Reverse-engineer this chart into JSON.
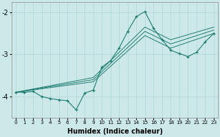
{
  "xlabel": "Humidex (Indice chaleur)",
  "xlim": [
    -0.5,
    23.5
  ],
  "ylim": [
    -4.5,
    -1.75
  ],
  "yticks": [
    -4,
    -3,
    -2
  ],
  "bg_color": "#cce8e8",
  "line_color": "#1a7a6e",
  "grid_color": "#b0d8d8",
  "main_line": {
    "x": [
      0,
      1,
      2,
      3,
      4,
      5,
      6,
      7,
      8,
      9,
      10,
      11,
      12,
      13,
      14,
      15,
      16,
      17,
      18,
      19,
      20,
      21,
      22,
      23
    ],
    "y": [
      -3.9,
      -3.9,
      -3.88,
      -4.0,
      -4.05,
      -4.08,
      -4.1,
      -4.32,
      -3.92,
      -3.85,
      -3.3,
      -3.15,
      -2.85,
      -2.45,
      -2.1,
      -1.98,
      -2.38,
      -2.65,
      -2.9,
      -2.98,
      -3.05,
      -2.95,
      -2.7,
      -2.5
    ]
  },
  "straight_lines": [
    {
      "x": [
        0,
        9,
        15,
        18,
        23
      ],
      "y": [
        -3.9,
        -3.65,
        -2.55,
        -2.85,
        -2.5
      ]
    },
    {
      "x": [
        0,
        9,
        15,
        18,
        23
      ],
      "y": [
        -3.9,
        -3.6,
        -2.45,
        -2.75,
        -2.42
      ]
    },
    {
      "x": [
        0,
        9,
        15,
        18,
        23
      ],
      "y": [
        -3.9,
        -3.55,
        -2.35,
        -2.65,
        -2.35
      ]
    }
  ]
}
